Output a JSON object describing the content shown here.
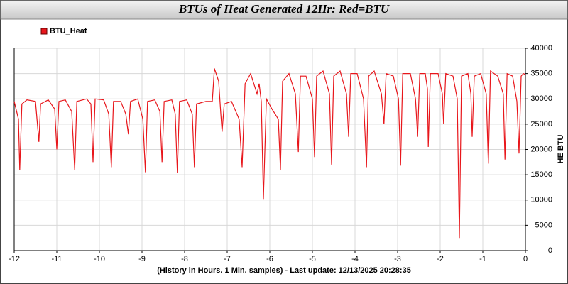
{
  "chart_data": {
    "type": "line",
    "title": "BTUs of Heat Generated 12Hr: Red=BTU",
    "xlabel": "(History in Hours. 1 Min. samples) - Last update: 12/13/2025 20:28:35",
    "ylabel": "HE BTU",
    "xlim": [
      -12,
      0
    ],
    "xticks": [
      -12,
      -11,
      -10,
      -9,
      -8,
      -7,
      -6,
      -5,
      -4,
      -3,
      -2,
      -1,
      0
    ],
    "ylim": [
      0,
      40000
    ],
    "yticks": [
      0,
      5000,
      10000,
      15000,
      20000,
      25000,
      30000,
      35000,
      40000
    ],
    "grid": true,
    "legend": "top-left",
    "x": [
      -12,
      -11.9,
      -11.87,
      -11.82,
      -11.7,
      -11.5,
      -11.42,
      -11.38,
      -11.2,
      -11.05,
      -11.0,
      -10.95,
      -10.8,
      -10.65,
      -10.58,
      -10.53,
      -10.3,
      -10.2,
      -10.15,
      -10.1,
      -9.9,
      -9.78,
      -9.72,
      -9.67,
      -9.5,
      -9.38,
      -9.32,
      -9.27,
      -9.1,
      -8.98,
      -8.92,
      -8.87,
      -8.7,
      -8.58,
      -8.53,
      -8.48,
      -8.3,
      -8.22,
      -8.17,
      -8.12,
      -7.95,
      -7.82,
      -7.77,
      -7.72,
      -7.5,
      -7.35,
      -7.3,
      -7.2,
      -7.15,
      -7.12,
      -7.07,
      -6.9,
      -6.72,
      -6.65,
      -6.58,
      -6.45,
      -6.3,
      -6.25,
      -6.2,
      -6.15,
      -6.08,
      -5.95,
      -5.8,
      -5.75,
      -5.7,
      -5.55,
      -5.4,
      -5.33,
      -5.28,
      -5.15,
      -5.0,
      -4.95,
      -4.9,
      -4.75,
      -4.6,
      -4.55,
      -4.5,
      -4.35,
      -4.2,
      -4.15,
      -4.1,
      -3.95,
      -3.8,
      -3.73,
      -3.68,
      -3.55,
      -3.38,
      -3.32,
      -3.27,
      -3.1,
      -2.98,
      -2.93,
      -2.88,
      -2.7,
      -2.58,
      -2.53,
      -2.48,
      -2.35,
      -2.3,
      -2.28,
      -2.23,
      -2.05,
      -1.95,
      -1.92,
      -1.87,
      -1.7,
      -1.6,
      -1.55,
      -1.5,
      -1.35,
      -1.28,
      -1.25,
      -1.2,
      -1.05,
      -0.92,
      -0.87,
      -0.82,
      -0.65,
      -0.52,
      -0.48,
      -0.43,
      -0.3,
      -0.2,
      -0.15,
      -0.1,
      -0.05,
      0
    ],
    "series": [
      {
        "name": "BTU_Heat",
        "color": "#e8161b",
        "values": [
          29500,
          26000,
          16000,
          29000,
          29800,
          29500,
          21500,
          29000,
          29800,
          28000,
          20000,
          29500,
          29800,
          27500,
          16000,
          29500,
          30000,
          29000,
          17500,
          30000,
          29800,
          27000,
          16500,
          29500,
          29500,
          27000,
          23000,
          29500,
          30000,
          26000,
          15500,
          29500,
          29800,
          27500,
          17500,
          29500,
          29800,
          27000,
          15300,
          29500,
          29800,
          27000,
          16500,
          29000,
          29500,
          29500,
          36000,
          33500,
          27000,
          23500,
          29000,
          29500,
          26000,
          16500,
          33000,
          35000,
          31000,
          33000,
          29500,
          10200,
          30000,
          28000,
          26000,
          16000,
          33500,
          35000,
          31000,
          19500,
          34500,
          34500,
          30000,
          18500,
          34500,
          35500,
          31000,
          17000,
          34500,
          35500,
          31000,
          22500,
          35000,
          35000,
          30000,
          16500,
          34500,
          35500,
          31000,
          25000,
          35000,
          34500,
          30000,
          16800,
          35000,
          35000,
          30000,
          22500,
          35000,
          35000,
          32000,
          20500,
          35000,
          35000,
          31000,
          25000,
          35000,
          34500,
          30000,
          2500,
          34500,
          35000,
          31000,
          22500,
          34500,
          35000,
          31000,
          17200,
          35500,
          34500,
          31000,
          18000,
          35000,
          34500,
          29500,
          19200,
          34500,
          35000,
          34800
        ]
      }
    ]
  }
}
